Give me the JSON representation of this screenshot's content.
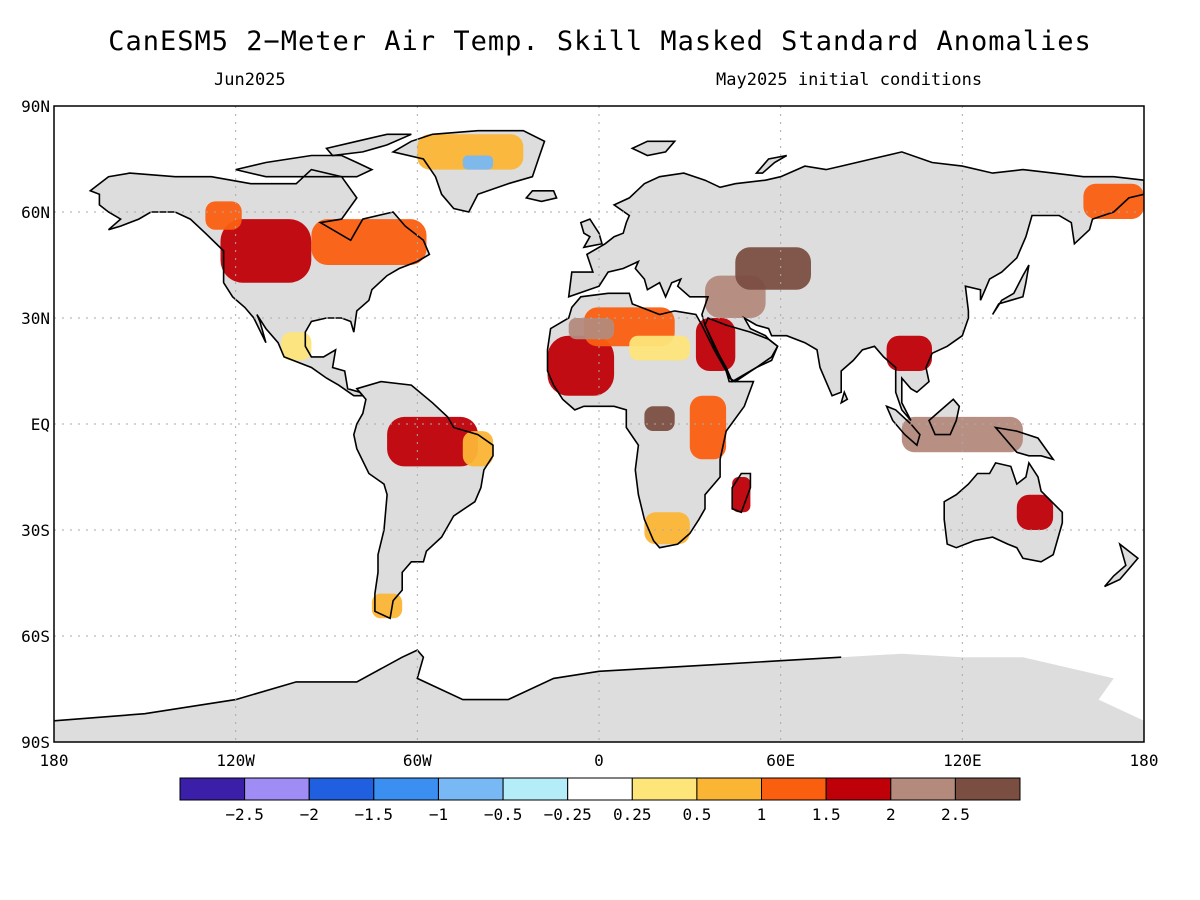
{
  "title": "CanESM5 2−Meter Air Temp. Skill Masked Standard Anomalies",
  "valid_month": "Jun2025",
  "init_text": "May2025 initial conditions",
  "colors": {
    "land_masked": "#dddddd",
    "ocean": "#ffffff",
    "coastline": "#000000",
    "gridline": "#aaaaaa"
  },
  "map": {
    "projection": "equirectangular",
    "lon_range": [
      -180,
      180
    ],
    "lat_range": [
      -90,
      90
    ],
    "lat_ticks": [
      {
        "value": 90,
        "label": "90N"
      },
      {
        "value": 60,
        "label": "60N"
      },
      {
        "value": 30,
        "label": "30N"
      },
      {
        "value": 0,
        "label": "EQ"
      },
      {
        "value": -30,
        "label": "30S"
      },
      {
        "value": -60,
        "label": "60S"
      },
      {
        "value": -90,
        "label": "90S"
      }
    ],
    "lon_ticks": [
      {
        "value": -180,
        "label": "180"
      },
      {
        "value": -120,
        "label": "120W"
      },
      {
        "value": -60,
        "label": "60W"
      },
      {
        "value": 0,
        "label": "0"
      },
      {
        "value": 60,
        "label": "60E"
      },
      {
        "value": 120,
        "label": "120E"
      },
      {
        "value": 180,
        "label": "180"
      }
    ],
    "grid": true
  },
  "colorbar": {
    "colors": [
      "#3b1fa8",
      "#9f8cf5",
      "#1f5fe0",
      "#3a8ff0",
      "#78b8f5",
      "#b4ecf8",
      "#ffffff",
      "#fde57a",
      "#fbb535",
      "#fa5f10",
      "#c00008",
      "#b48a7c",
      "#7b4e42"
    ],
    "labels": [
      "−2.5",
      "−2",
      "−1.5",
      "−1",
      "−0.5",
      "−0.25",
      "0.25",
      "0.5",
      "1",
      "1.5",
      "2",
      "2.5"
    ]
  },
  "anomaly_regions": [
    {
      "region": "western-us-canada",
      "lon": [
        -125,
        -95
      ],
      "lat": [
        40,
        58
      ],
      "category": 10
    },
    {
      "region": "eastern-canada",
      "lon": [
        -95,
        -57
      ],
      "lat": [
        45,
        58
      ],
      "category": 9
    },
    {
      "region": "alaska-yukon",
      "lon": [
        -130,
        -118
      ],
      "lat": [
        55,
        63
      ],
      "category": 9
    },
    {
      "region": "greenland-north",
      "lon": [
        -60,
        -25
      ],
      "lat": [
        72,
        82
      ],
      "category": 8
    },
    {
      "region": "greenland-central",
      "lon": [
        -45,
        -35
      ],
      "lat": [
        72,
        76
      ],
      "category": 4
    },
    {
      "region": "mexico",
      "lon": [
        -105,
        -95
      ],
      "lat": [
        18,
        26
      ],
      "category": 7
    },
    {
      "region": "amazon",
      "lon": [
        -70,
        -40
      ],
      "lat": [
        -12,
        2
      ],
      "category": 10
    },
    {
      "region": "northeast-brazil",
      "lon": [
        -45,
        -35
      ],
      "lat": [
        -12,
        -2
      ],
      "category": 8
    },
    {
      "region": "patagonia",
      "lon": [
        -75,
        -65
      ],
      "lat": [
        -55,
        -48
      ],
      "category": 8
    },
    {
      "region": "west-africa",
      "lon": [
        -17,
        5
      ],
      "lat": [
        8,
        25
      ],
      "category": 10
    },
    {
      "region": "sahara-north",
      "lon": [
        -5,
        25
      ],
      "lat": [
        22,
        33
      ],
      "category": 9
    },
    {
      "region": "sahara-central",
      "lon": [
        10,
        30
      ],
      "lat": [
        18,
        25
      ],
      "category": 7
    },
    {
      "region": "libya-interior",
      "lon": [
        -10,
        5
      ],
      "lat": [
        24,
        30
      ],
      "category": 11
    },
    {
      "region": "arabia-red-sea",
      "lon": [
        32,
        45
      ],
      "lat": [
        15,
        30
      ],
      "category": 10
    },
    {
      "region": "middle-east",
      "lon": [
        35,
        55
      ],
      "lat": [
        30,
        42
      ],
      "category": 11
    },
    {
      "region": "central-asia",
      "lon": [
        45,
        70
      ],
      "lat": [
        38,
        50
      ],
      "category": 12
    },
    {
      "region": "congo-basin",
      "lon": [
        15,
        25
      ],
      "lat": [
        -2,
        5
      ],
      "category": 12
    },
    {
      "region": "east-africa",
      "lon": [
        30,
        42
      ],
      "lat": [
        -10,
        8
      ],
      "category": 9
    },
    {
      "region": "southern-africa",
      "lon": [
        15,
        30
      ],
      "lat": [
        -34,
        -25
      ],
      "category": 8
    },
    {
      "region": "madagascar",
      "lon": [
        44,
        50
      ],
      "lat": [
        -25,
        -15
      ],
      "category": 10
    },
    {
      "region": "indochina",
      "lon": [
        95,
        110
      ],
      "lat": [
        15,
        25
      ],
      "category": 10
    },
    {
      "region": "maritime-asia",
      "lon": [
        100,
        140
      ],
      "lat": [
        -8,
        2
      ],
      "category": 11
    },
    {
      "region": "australia-east",
      "lon": [
        138,
        150
      ],
      "lat": [
        -30,
        -20
      ],
      "category": 10
    },
    {
      "region": "east-siberia",
      "lon": [
        160,
        180
      ],
      "lat": [
        58,
        68
      ],
      "category": 9
    }
  ]
}
